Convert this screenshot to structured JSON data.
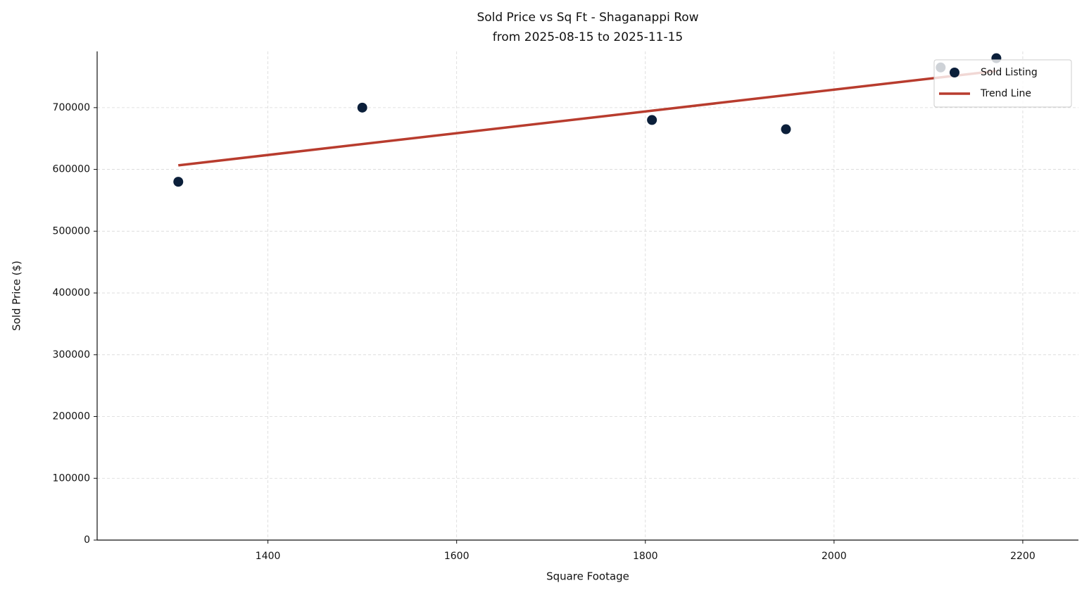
{
  "chart_data": {
    "type": "scatter",
    "title": "Sold Price vs Sq Ft - Shaganappi Row",
    "subtitle": "from 2025-08-15 to 2025-11-15",
    "x_label": "Square Footage",
    "y_label": "Sold Price ($)",
    "xlim": [
      1219,
      2259
    ],
    "xticks": [
      1400,
      1600,
      1800,
      2000,
      2200
    ],
    "ylim": [
      0,
      791000
    ],
    "yticks": [
      0,
      100000,
      200000,
      300000,
      400000,
      500000,
      600000,
      700000
    ],
    "grid": true,
    "legend": "upper right",
    "series": [
      {
        "name": "Sold Listing",
        "type": "scatter",
        "color": "#0b1f3a",
        "x": [
          1305,
          1500,
          1807,
          1949,
          2113,
          2172
        ],
        "values": [
          580000,
          700000,
          680000,
          665000,
          765000,
          780000
        ]
      },
      {
        "name": "Trend Line",
        "type": "line",
        "color": "#b83c2e",
        "x": [
          1305,
          2172
        ],
        "values": [
          606600,
          759400
        ]
      }
    ]
  }
}
